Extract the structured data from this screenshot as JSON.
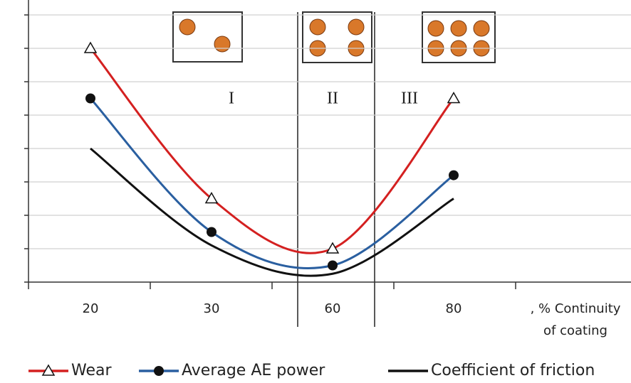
{
  "chart_data": {
    "type": "line",
    "categories": [
      "20",
      "30",
      "60",
      "80"
    ],
    "series": [
      {
        "name": "Wear",
        "color": "#d42020",
        "marker": "triangle",
        "values": [
          7,
          2.5,
          1,
          5.5
        ]
      },
      {
        "name": "Average AE power",
        "color": "#2a5fa0",
        "marker": "circle",
        "values": [
          5.5,
          1.5,
          0.5,
          3.2
        ]
      },
      {
        "name": "Coefficient of friction",
        "color": "#111111",
        "marker": "none",
        "values": [
          4,
          1.1,
          0.25,
          2.5
        ]
      }
    ],
    "ylim": [
      0,
      8
    ],
    "yticks": [
      0,
      1,
      2,
      3,
      4,
      5,
      6,
      7,
      8
    ],
    "grid": true,
    "xlabel": [
      ", % Continuity",
      "of coating"
    ],
    "annotations": [
      "I",
      "II",
      "III"
    ],
    "legend": "bottom"
  }
}
